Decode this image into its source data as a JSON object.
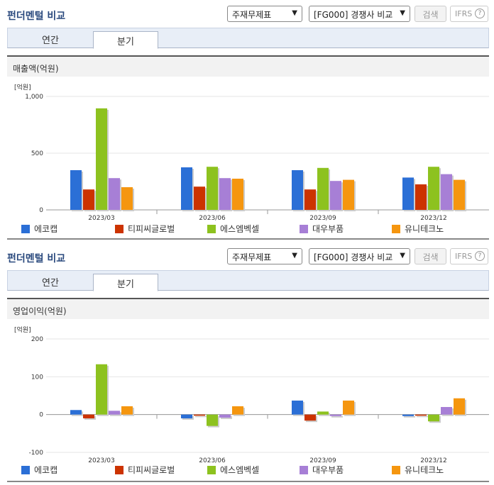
{
  "panels": [
    {
      "title": "펀더멘털 비교",
      "select1": "주재무제표",
      "select2": "[FG000] 경쟁사 비교",
      "search_btn": "검색",
      "ifrs": "IFRS",
      "ifrs_help": "?",
      "tabs": [
        "연간",
        "분기"
      ],
      "active_tab": 1,
      "section_title": "매출액(억원)"
    },
    {
      "title": "펀더멘털 비교",
      "select1": "주재무제표",
      "select2": "[FG000] 경쟁사 비교",
      "search_btn": "검색",
      "ifrs": "IFRS",
      "ifrs_help": "?",
      "tabs": [
        "연간",
        "분기"
      ],
      "active_tab": 1,
      "section_title": "영업이익(억원)"
    }
  ],
  "chart_data": [
    {
      "type": "bar",
      "unit_label": "[억원]",
      "categories": [
        "2023/03",
        "2023/06",
        "2023/09",
        "2023/12"
      ],
      "ylim": [
        0,
        1000
      ],
      "yticks": [
        0,
        500,
        1000
      ],
      "ytick_labels": [
        "0",
        "500",
        "1,000"
      ],
      "series": [
        {
          "name": "에코캡",
          "color": "#2b6fd6",
          "values": [
            350,
            375,
            350,
            285
          ]
        },
        {
          "name": "티피씨글로벌",
          "color": "#cc3300",
          "values": [
            180,
            205,
            180,
            225
          ]
        },
        {
          "name": "에스엠벡셀",
          "color": "#8dc21f",
          "values": [
            895,
            380,
            370,
            380
          ]
        },
        {
          "name": "대우부품",
          "color": "#a77fd6",
          "values": [
            280,
            280,
            255,
            315
          ]
        },
        {
          "name": "유니테크노",
          "color": "#f5960f",
          "values": [
            200,
            275,
            265,
            265
          ]
        }
      ]
    },
    {
      "type": "bar",
      "unit_label": "[억원]",
      "categories": [
        "2023/03",
        "2023/06",
        "2023/09",
        "2023/12"
      ],
      "ylim": [
        -100,
        200
      ],
      "yticks": [
        -100,
        0,
        100,
        200
      ],
      "ytick_labels": [
        "-100",
        "0",
        "100",
        "200"
      ],
      "series": [
        {
          "name": "에코캡",
          "color": "#2b6fd6",
          "values": [
            12,
            -10,
            37,
            -4
          ]
        },
        {
          "name": "티피씨글로벌",
          "color": "#cc3300",
          "values": [
            -10,
            -3,
            -16,
            -3
          ]
        },
        {
          "name": "에스엠벡셀",
          "color": "#8dc21f",
          "values": [
            133,
            -30,
            8,
            -18
          ]
        },
        {
          "name": "대우부품",
          "color": "#a77fd6",
          "values": [
            10,
            -8,
            -4,
            20
          ]
        },
        {
          "name": "유니테크노",
          "color": "#f5960f",
          "values": [
            22,
            22,
            37,
            43
          ]
        }
      ]
    }
  ]
}
